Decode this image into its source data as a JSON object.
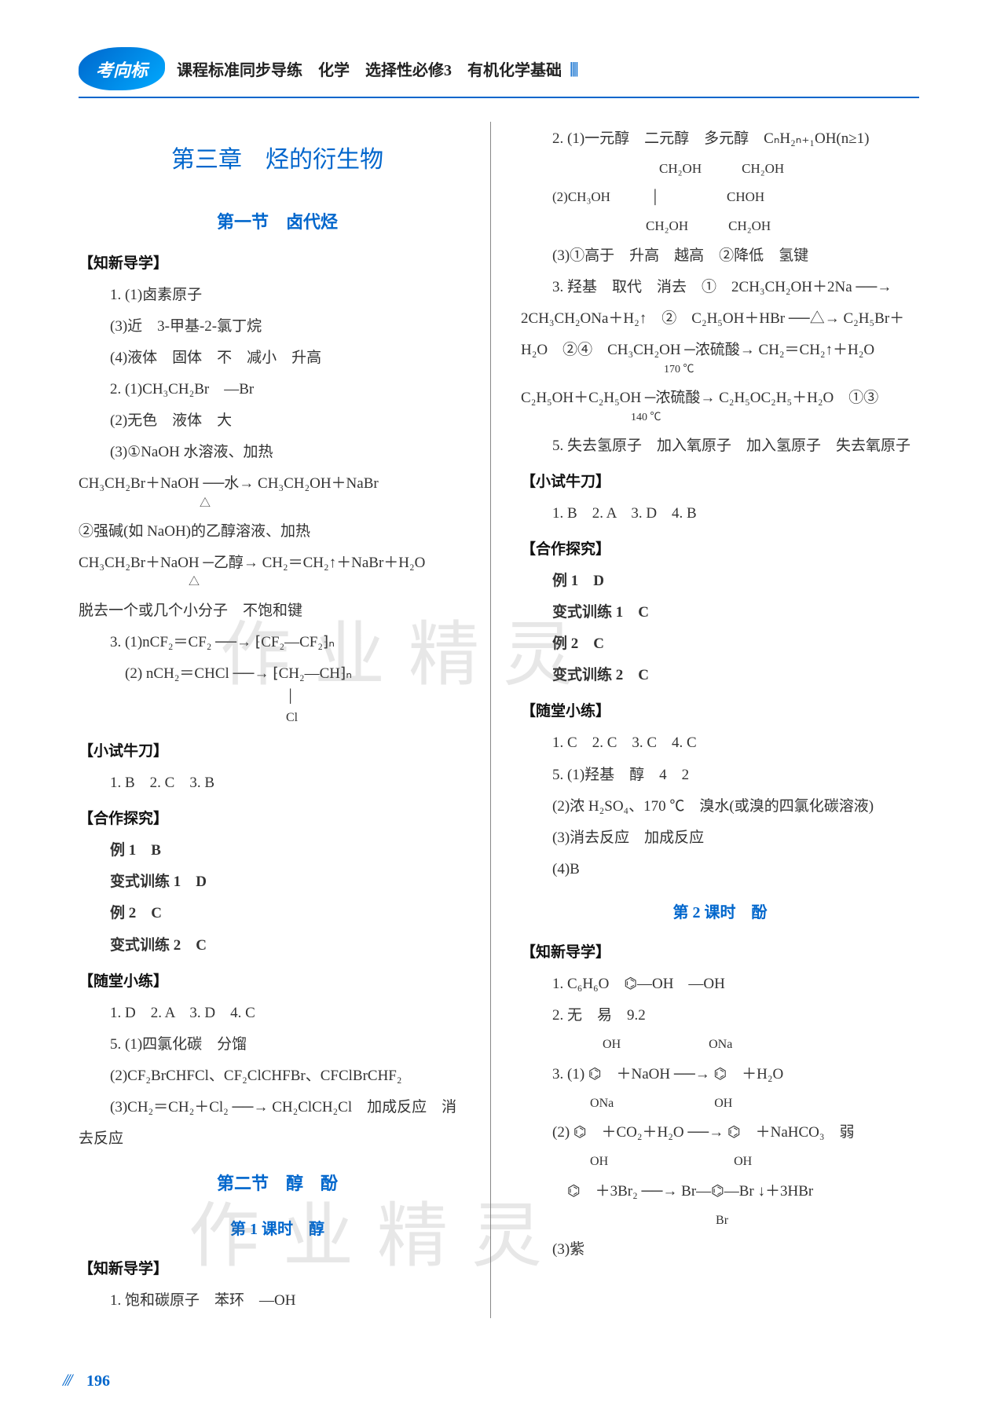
{
  "header": {
    "logo_text": "考向标",
    "title": "课程标准同步导练　化学　选择性必修3　有机化学基础",
    "bars": "||||"
  },
  "chapter_title": "第三章　烃的衍生物",
  "section1_title": "第一节　卤代烃",
  "left": {
    "b1_title": "【知新导学】",
    "l1": "1. (1)卤素原子",
    "l2": "(3)近　3-甲基-2-氯丁烷",
    "l3": "(4)液体　固体　不　减小　升高",
    "l4": "2. (1)CH₃CH₂Br　—Br",
    "l5": "(2)无色　液体　大",
    "l6": "(3)①NaOH 水溶液、加热",
    "l7": "CH₃CH₂Br＋NaOH  ──水→  CH₃CH₂OH＋NaBr",
    "l7b": "　　　　　　　　　　　△",
    "l8": "②强碱(如 NaOH)的乙醇溶液、加热",
    "l9": "CH₃CH₂Br＋NaOH  ─乙醇→ CH₂＝CH₂↑＋NaBr＋H₂O",
    "l9b": "　　　　　　　　　　△",
    "l10": "脱去一个或几个小分子　不饱和键",
    "l11": "3. (1)nCF₂＝CF₂ ──→ ⁅CF₂—CF₂⁆ₙ",
    "l12": "　(2) nCH₂＝CHCl ──→ ⁅CH₂—CH⁆ₙ",
    "l12b": "　　　　　　　　　　　　　　│",
    "l12c": "　　　　　　　　　　　　　　Cl",
    "b2_title": "【小试牛刀】",
    "l13": "1. B　2. C　3. B",
    "b3_title": "【合作探究】",
    "l14": "例 1　B",
    "l15": "变式训练 1　D",
    "l16": "例 2　C",
    "l17": "变式训练 2　C",
    "b4_title": "【随堂小练】",
    "l18": "1. D　2. A　3. D　4. C",
    "l19": "5. (1)四氯化碳　分馏",
    "l20": "(2)CF₂BrCHFCl、CF₂ClCHFBr、CFClBrCHF₂",
    "l21": "(3)CH₂＝CH₂＋Cl₂ ──→ CH₂ClCH₂Cl　加成反应　消",
    "l22": "去反应",
    "section2_title": "第二节　醇　酚",
    "period1_title": "第 1 课时　醇",
    "b5_title": "【知新导学】",
    "l23": "1. 饱和碳原子　苯环　—OH"
  },
  "right": {
    "r1": "2. (1)一元醇　二元醇　多元醇　CₙH₂ₙ₊₁OH(n≥1)",
    "r2a": "　　　　　　　　CH₂OH　　　CH₂OH",
    "r2b": "(2)CH₃OH　　　│　　　　　CHOH",
    "r2c": "　　　　　　　CH₂OH　　　CH₂OH",
    "r3": "(3)①高于　升高　越高　②降低　氢键",
    "r4": "3. 羟基　取代　消去　①　2CH₃CH₂OH＋2Na ──→",
    "r5": "2CH₃CH₂ONa＋H₂↑　②　C₂H₅OH＋HBr ──△→ C₂H₅Br＋",
    "r6": "H₂O　②④　CH₃CH₂OH ─浓硫酸→ CH₂＝CH₂↑＋H₂O",
    "r6b": "　　　　　　　　　　　　　170 ℃",
    "r7": "C₂H₅OH＋C₂H₅OH ─浓硫酸→ C₂H₅OC₂H₅＋H₂O　①③",
    "r7b": "　　　　　　　　　　140 ℃",
    "r8": "5. 失去氢原子　加入氧原子　加入氢原子　失去氧原子",
    "b2_title": "【小试牛刀】",
    "r9": "1. B　2. A　3. D　4. B",
    "b3_title": "【合作探究】",
    "r10": "例 1　D",
    "r11": "变式训练 1　C",
    "r12": "例 2　C",
    "r13": "变式训练 2　C",
    "b4_title": "【随堂小练】",
    "r14": "1. C　2. C　3. C　4. C",
    "r15": "5. (1)羟基　醇　4　2",
    "r16": "(2)浓 H₂SO₄、170 ℃　溴水(或溴的四氯化碳溶液)",
    "r17": "(3)消去反应　加成反应",
    "r18": "(4)B",
    "period2_title": "第 2 课时　酚",
    "b5_title": "【知新导学】",
    "r19": "1. C₆H₆O　⌬—OH　—OH",
    "r20": "2. 无　易　9.2",
    "r21_pre": "　　　　OH　　　　　　　ONa",
    "r21": "3. (1) ⌬　＋NaOH ──→ ⌬　＋H₂O",
    "r22_pre": "　　　ONa　　　　　　　　OH",
    "r22": "(2) ⌬　＋CO₂＋H₂O ──→ ⌬　＋NaHCO₃　弱",
    "r23_pre": "　　　OH　　　　　　　　　　OH",
    "r23": "　⌬　＋3Br₂ ──→ Br—⌬—Br ↓＋3HBr",
    "r23_post": "　　　　　　　　　　　　　Br",
    "r24": "(3)紫"
  },
  "watermark_text": "作业精灵",
  "page_number": "196",
  "colors": {
    "accent": "#0066cc",
    "text": "#333333",
    "watermark": "rgba(120,120,120,0.18)"
  }
}
